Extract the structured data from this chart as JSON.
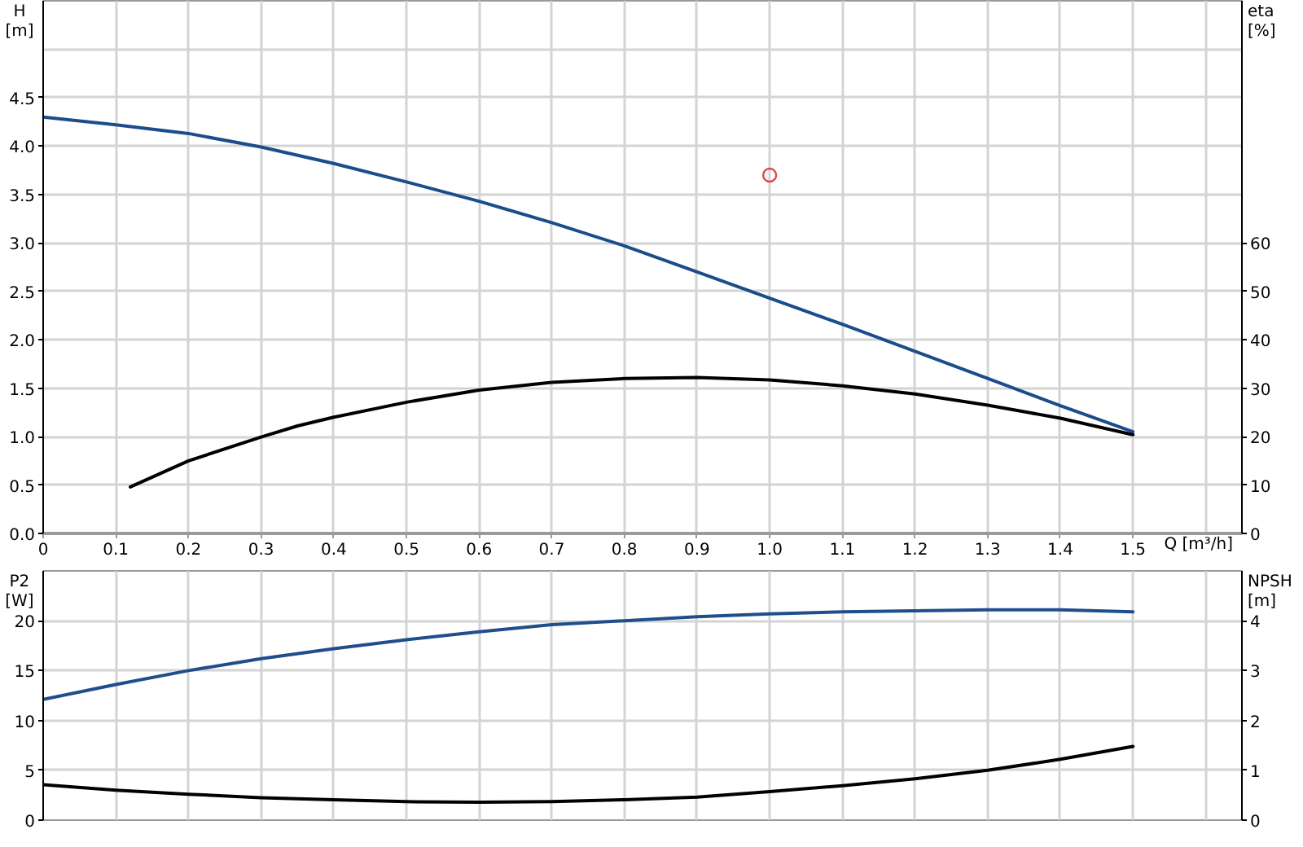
{
  "chart_data": [
    {
      "type": "line",
      "xlabel": "Q [m³/h]",
      "ylabel": "H [m]",
      "y2label": "eta [%]",
      "xlim": [
        0,
        1.65
      ],
      "xticks": [
        0,
        0.1,
        0.2,
        0.3,
        0.4,
        0.5,
        0.6,
        0.7,
        0.8,
        0.9,
        {
          "value": 1.0,
          "label": "1.0"
        },
        1.1,
        1.2,
        1.3,
        1.4,
        1.5,
        {
          "value": 1.6,
          "label": null
        }
      ],
      "ylim": [
        0,
        5.5
      ],
      "yticks": [
        {
          "value": 0,
          "label": "0.0"
        },
        0.5,
        {
          "value": 1,
          "label": "1.0"
        },
        1.5,
        {
          "value": 2,
          "label": "2.0"
        },
        2.5,
        {
          "value": 3,
          "label": "3.0"
        },
        3.5,
        {
          "value": 4,
          "label": "4.0"
        },
        4.5,
        {
          "value": 5,
          "label": null
        }
      ],
      "y2lim": [
        0,
        110
      ],
      "y2ticks": [
        0,
        10,
        20,
        30,
        40,
        50,
        60
      ],
      "grid": true,
      "series": [
        {
          "color": "#1b4d8a",
          "x": [
            0,
            0.1,
            0.2,
            0.3,
            0.4,
            0.5,
            0.6,
            0.7,
            0.8,
            0.9,
            1.0,
            1.1,
            1.2,
            1.3,
            1.4,
            1.5
          ],
          "values": [
            4.3,
            4.22,
            4.13,
            3.99,
            3.82,
            3.63,
            3.43,
            3.21,
            2.97,
            2.7,
            2.43,
            2.16,
            1.88,
            1.6,
            1.32,
            1.05
          ]
        },
        {
          "color": "#000000",
          "axis": "y2",
          "x": [
            0.12,
            0.2,
            0.3,
            0.35,
            0.4,
            0.5,
            0.6,
            0.7,
            0.8,
            0.9,
            1.0,
            1.1,
            1.2,
            1.3,
            1.4,
            1.5
          ],
          "values": [
            9.6,
            15.0,
            19.9,
            22.2,
            24.0,
            27.1,
            29.6,
            31.2,
            32.0,
            32.2,
            31.7,
            30.5,
            28.8,
            26.5,
            23.8,
            20.4
          ]
        },
        {
          "type": "scatter",
          "marker": "circle",
          "color": "#e04848",
          "x": [
            1.0
          ],
          "values": [
            3.7
          ]
        }
      ]
    },
    {
      "type": "line",
      "ylabel": "P2 [W]",
      "y2label": "NPSH [m]",
      "xlim": [
        0,
        1.65
      ],
      "xticks": [
        0,
        0.1,
        0.2,
        0.3,
        0.4,
        0.5,
        0.6,
        0.7,
        0.8,
        0.9,
        1.0,
        1.1,
        1.2,
        1.3,
        1.4,
        1.5,
        1.6
      ],
      "ylim": [
        0,
        25
      ],
      "yticks": [
        0,
        5,
        10,
        15,
        20
      ],
      "y2lim": [
        0,
        5
      ],
      "y2ticks": [
        0,
        1,
        2,
        3,
        4
      ],
      "tick_labels": "y",
      "grid": true,
      "series": [
        {
          "color": "#1f4e8c",
          "x": [
            0,
            0.1,
            0.2,
            0.3,
            0.4,
            0.5,
            0.6,
            0.7,
            0.8,
            0.9,
            1.0,
            1.1,
            1.2,
            1.3,
            1.4,
            1.5
          ],
          "values": [
            12.1,
            13.6,
            15.0,
            16.2,
            17.2,
            18.1,
            18.9,
            19.6,
            20.0,
            20.4,
            20.7,
            20.9,
            21.0,
            21.1,
            21.1,
            20.9
          ]
        },
        {
          "color": "#000000",
          "axis": "y2",
          "x": [
            0,
            0.1,
            0.2,
            0.3,
            0.4,
            0.5,
            0.6,
            0.7,
            0.8,
            0.9,
            1.0,
            1.1,
            1.2,
            1.3,
            1.4,
            1.5
          ],
          "values": [
            0.71,
            0.6,
            0.52,
            0.45,
            0.41,
            0.37,
            0.36,
            0.37,
            0.41,
            0.46,
            0.57,
            0.69,
            0.83,
            1.0,
            1.22,
            1.48
          ]
        }
      ]
    }
  ]
}
